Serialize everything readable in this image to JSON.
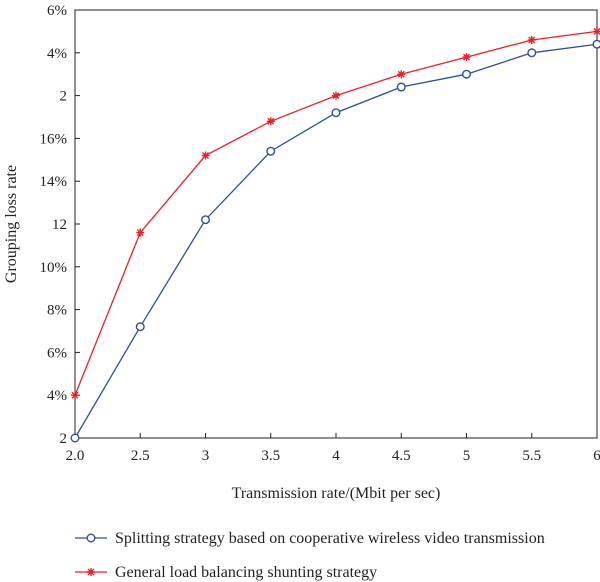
{
  "chart_data": {
    "type": "line",
    "xlabel": "Transmission rate/(Mbit per sec)",
    "ylabel": "Grouping loss rate",
    "x_tick_labels": [
      "2.0",
      "2.5",
      "3",
      "3.5",
      "4",
      "4.5",
      "5",
      "5.5",
      "6"
    ],
    "y_tick_labels": [
      "2",
      "4%",
      "6%",
      "8%",
      "10%",
      "12",
      "14%",
      "16%",
      "2",
      "4%",
      "6%"
    ],
    "x": [
      2.0,
      2.5,
      3.0,
      3.5,
      4.0,
      4.5,
      5.0,
      5.5,
      6.0
    ],
    "xlim": [
      2.0,
      6.0
    ],
    "ylim": [
      2,
      22
    ],
    "grid": false,
    "legend_position": "bottom",
    "series": [
      {
        "name": "Splitting strategy based on cooperative wireless video transmission",
        "color": "#2e4e9a",
        "marker": "circle",
        "values": [
          2.0,
          7.2,
          12.2,
          15.4,
          17.2,
          18.4,
          19.0,
          20.0,
          20.4
        ]
      },
      {
        "name": "General load balancing shunting strategy",
        "color": "#e8202a",
        "marker": "star",
        "values": [
          4.0,
          11.6,
          15.2,
          16.8,
          18.0,
          19.0,
          19.8,
          20.6,
          21.0
        ]
      }
    ]
  }
}
